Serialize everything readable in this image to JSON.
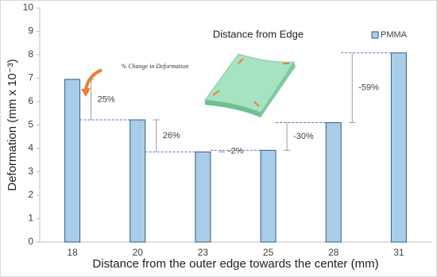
{
  "chart_data": {
    "type": "bar",
    "categories": [
      "18",
      "20",
      "23",
      "25",
      "28",
      "31"
    ],
    "series": [
      {
        "name": "PMMA",
        "color": "#a9cce8",
        "values": [
          6.95,
          5.22,
          3.85,
          3.92,
          5.1,
          8.08
        ]
      }
    ],
    "ylim": [
      0,
      10
    ],
    "yticks": [
      0,
      1,
      2,
      3,
      4,
      5,
      6,
      7,
      8,
      9,
      10
    ],
    "y_label": "Deformation (mm x 10⁻³)",
    "x_label": "Distance from the outer edge towards the center (mm)",
    "inset_title": "Distance from Edge",
    "callout": "% Change in Deformation",
    "annotations": [
      "25%",
      "26%",
      "-2%",
      "-30%",
      "-59%"
    ],
    "legend": "top-right"
  }
}
